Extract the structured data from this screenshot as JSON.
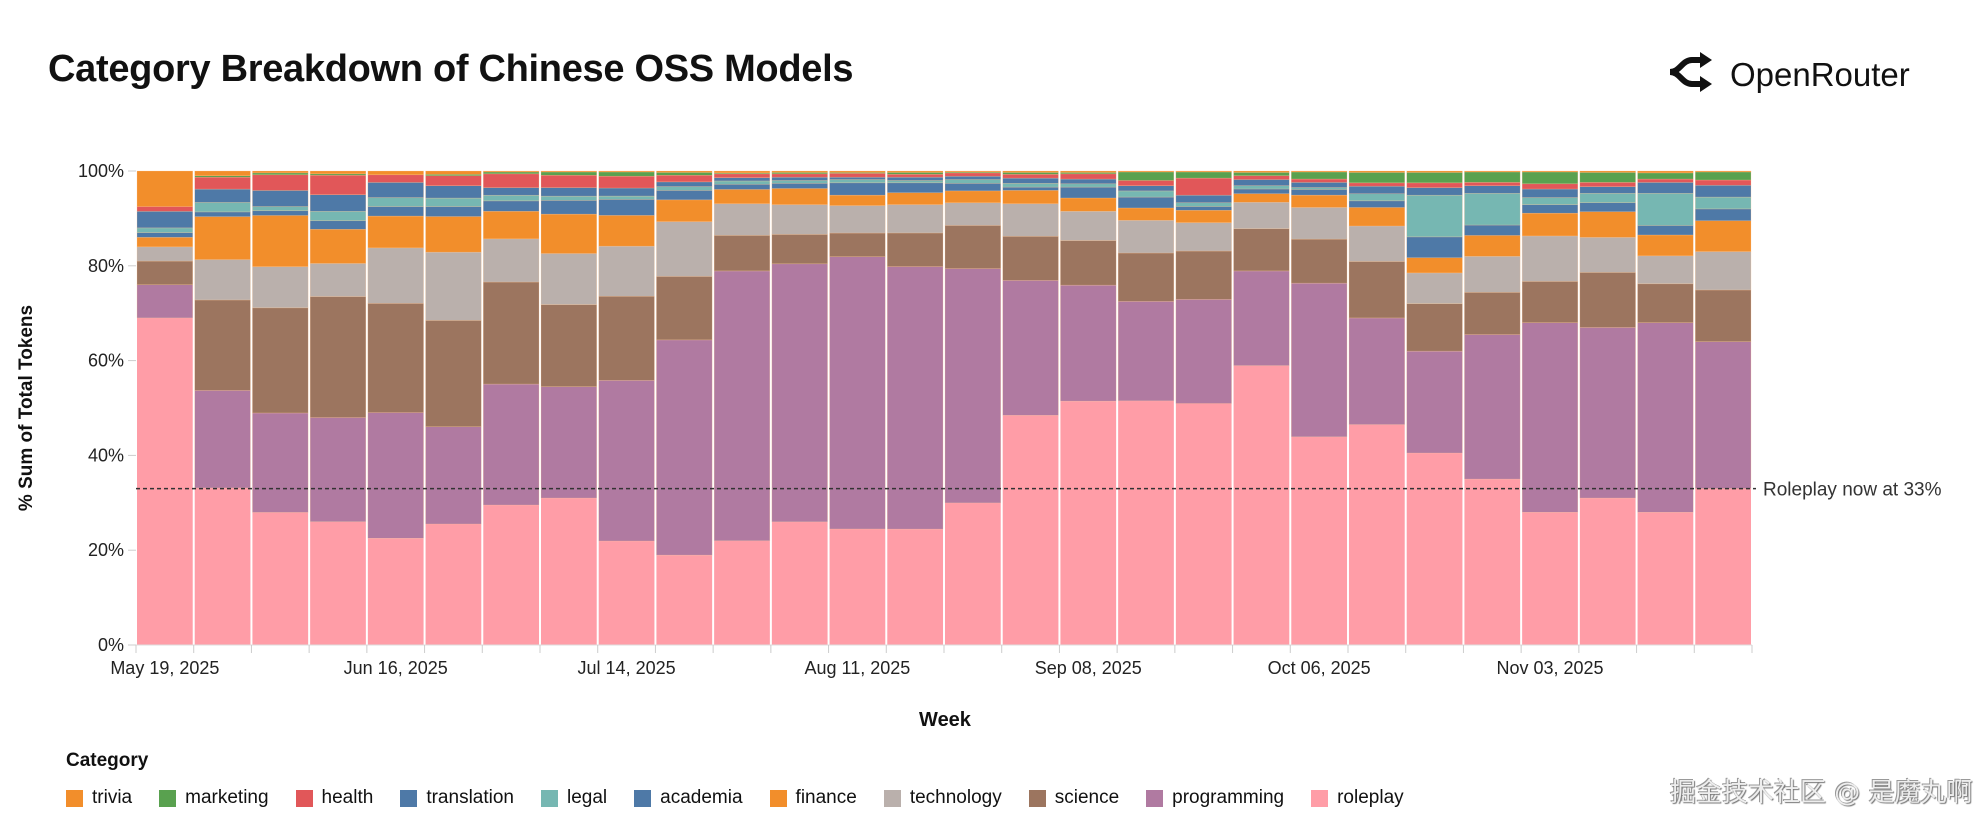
{
  "header": {
    "title": "Category Breakdown of Chinese OSS Models",
    "logo_text": "OpenRouter"
  },
  "watermark": "掘金技术社区 @ 是魔丸啊",
  "chart_data": {
    "type": "bar",
    "stacked": "percent",
    "title": "Category Breakdown of Chinese OSS Models",
    "xlabel": "Week",
    "ylabel": "% Sum of Total Tokens",
    "ylim": [
      0,
      100
    ],
    "yticks": [
      "0%",
      "20%",
      "40%",
      "60%",
      "80%",
      "100%"
    ],
    "xtick_labels": [
      "May 19, 2025",
      "Jun 16, 2025",
      "Jul 14, 2025",
      "Aug 11, 2025",
      "Sep 08, 2025",
      "Oct 06, 2025",
      "Nov 03, 2025"
    ],
    "categories": [
      "2025-05-19",
      "2025-05-26",
      "2025-06-02",
      "2025-06-09",
      "2025-06-16",
      "2025-06-23",
      "2025-06-30",
      "2025-07-07",
      "2025-07-14",
      "2025-07-21",
      "2025-07-28",
      "2025-08-04",
      "2025-08-11",
      "2025-08-18",
      "2025-08-25",
      "2025-09-01",
      "2025-09-08",
      "2025-09-15",
      "2025-09-22",
      "2025-09-29",
      "2025-10-06",
      "2025-10-13",
      "2025-10-20",
      "2025-10-27",
      "2025-11-03",
      "2025-11-10",
      "2025-11-17",
      "2025-11-24"
    ],
    "legend_title": "Category",
    "legend_position": "bottom",
    "series": [
      {
        "name": "roleplay",
        "color": "#FF9DA7",
        "values": [
          69,
          33,
          28,
          26,
          22.5,
          25.5,
          29.5,
          31,
          22,
          19,
          22,
          26,
          24.5,
          24.5,
          30,
          48.5,
          51.5,
          51.5,
          51,
          59,
          44,
          46.5,
          40.5,
          35,
          28,
          31,
          28,
          33
        ]
      },
      {
        "name": "programming",
        "color": "#B07AA1",
        "values": [
          7,
          20.5,
          21,
          22,
          26.5,
          20.5,
          25.5,
          23.5,
          34,
          45.5,
          57,
          54.5,
          57.5,
          55.5,
          49.5,
          28.5,
          24.5,
          21,
          22,
          20,
          32.5,
          22.5,
          21.5,
          30.5,
          40,
          36,
          40,
          31
        ]
      },
      {
        "name": "science",
        "color": "#9C755F",
        "values": [
          5,
          19,
          22.2,
          25.5,
          23,
          22.4,
          21.5,
          17.3,
          17.8,
          13.4,
          7.5,
          6.2,
          5,
          7.1,
          9.1,
          9.3,
          9.4,
          10.2,
          10.2,
          8.9,
          9.3,
          11.9,
          10,
          8.9,
          8.7,
          11.6,
          8.2,
          10.9
        ]
      },
      {
        "name": "technology",
        "color": "#BAB0AC",
        "values": [
          3,
          8.5,
          8.7,
          7,
          11.7,
          14.4,
          9.1,
          10.8,
          10.6,
          11.6,
          6.7,
          6.3,
          5.8,
          6,
          4.8,
          6.9,
          6.2,
          6.9,
          6,
          5.6,
          6.7,
          7.5,
          6.5,
          7.6,
          9.6,
          7.4,
          5.9,
          8.1
        ]
      },
      {
        "name": "finance",
        "color": "#F28E2B",
        "values": [
          2,
          9,
          10.8,
          7.2,
          6.7,
          7.5,
          5.8,
          8.3,
          6.5,
          4.6,
          3,
          3.4,
          2.2,
          2.5,
          2.5,
          2.8,
          2.8,
          2.6,
          2.6,
          1.8,
          2.6,
          3.9,
          3.2,
          4.4,
          4.8,
          5.4,
          4.4,
          6.5
        ]
      },
      {
        "name": "academia",
        "color": "#4E79A7",
        "values": [
          1,
          1,
          1,
          1.8,
          2,
          2.1,
          2.2,
          2.9,
          3.4,
          2,
          1.1,
          1.1,
          2.6,
          2.1,
          1.6,
          0.7,
          2.3,
          2.3,
          0.8,
          1,
          1.2,
          1.4,
          4.4,
          2.2,
          1.8,
          1.9,
          2,
          2.5
        ]
      },
      {
        "name": "legal",
        "color": "#76B7B2",
        "values": [
          1,
          2,
          0.9,
          2,
          1.9,
          1.8,
          1.2,
          0.9,
          0.7,
          0.8,
          0.7,
          0.6,
          0.7,
          0.5,
          0.8,
          0.8,
          0.7,
          1.3,
          0.8,
          0.7,
          0.4,
          1.5,
          8.8,
          6.7,
          1.5,
          2,
          6.8,
          2.5
        ]
      },
      {
        "name": "translation",
        "color": "#4E79A7",
        "values": [
          3.5,
          2.8,
          3.4,
          3.5,
          3.2,
          2.6,
          1.6,
          1.8,
          1.7,
          1,
          0.7,
          0.7,
          0.5,
          0.7,
          0.7,
          1.1,
          1,
          1.1,
          1.6,
          1.3,
          1.1,
          1.6,
          1.6,
          1.6,
          1.8,
          1.4,
          2.3,
          2.5
        ]
      },
      {
        "name": "health",
        "color": "#E15759",
        "values": [
          1,
          2.5,
          3.3,
          4.1,
          1.6,
          2.1,
          2.9,
          2.6,
          2.5,
          1.4,
          0.8,
          0.7,
          0.8,
          0.6,
          0.7,
          0.8,
          1.1,
          1.1,
          3.6,
          0.8,
          0.7,
          0.7,
          1,
          0.7,
          1.1,
          0.9,
          0.7,
          1.1
        ]
      },
      {
        "name": "marketing",
        "color": "#59A14F",
        "values": [
          0,
          0.3,
          0.4,
          0.3,
          0,
          0.3,
          0.4,
          0.7,
          0.9,
          0.6,
          0.2,
          0.3,
          0.2,
          0.4,
          0.2,
          0.4,
          0.3,
          1.8,
          1.3,
          0.7,
          1.5,
          2.2,
          2.2,
          2.2,
          2.5,
          2.1,
          1.3,
          1.7
        ]
      },
      {
        "name": "trivia",
        "color": "#F28E2B",
        "values": [
          7.5,
          1,
          0.4,
          0.6,
          0.8,
          0.7,
          0.2,
          0.2,
          0.2,
          0.3,
          0.4,
          0.3,
          0.3,
          0.3,
          0.2,
          0.3,
          0.3,
          0.2,
          0.2,
          0.3,
          0.2,
          0.3,
          0.3,
          0.2,
          0.2,
          0.3,
          0.4,
          0.2
        ]
      }
    ],
    "annotation": {
      "label": "Roleplay now at 33%",
      "value": 33,
      "style": "dashed"
    },
    "legend": [
      {
        "label": "trivia",
        "color": "#F28E2B"
      },
      {
        "label": "marketing",
        "color": "#59A14F"
      },
      {
        "label": "health",
        "color": "#E15759"
      },
      {
        "label": "translation",
        "color": "#4E79A7"
      },
      {
        "label": "legal",
        "color": "#76B7B2"
      },
      {
        "label": "academia",
        "color": "#4E79A7"
      },
      {
        "label": "finance",
        "color": "#F28E2B"
      },
      {
        "label": "technology",
        "color": "#BAB0AC"
      },
      {
        "label": "science",
        "color": "#9C755F"
      },
      {
        "label": "programming",
        "color": "#B07AA1"
      },
      {
        "label": "roleplay",
        "color": "#FF9DA7"
      }
    ]
  }
}
